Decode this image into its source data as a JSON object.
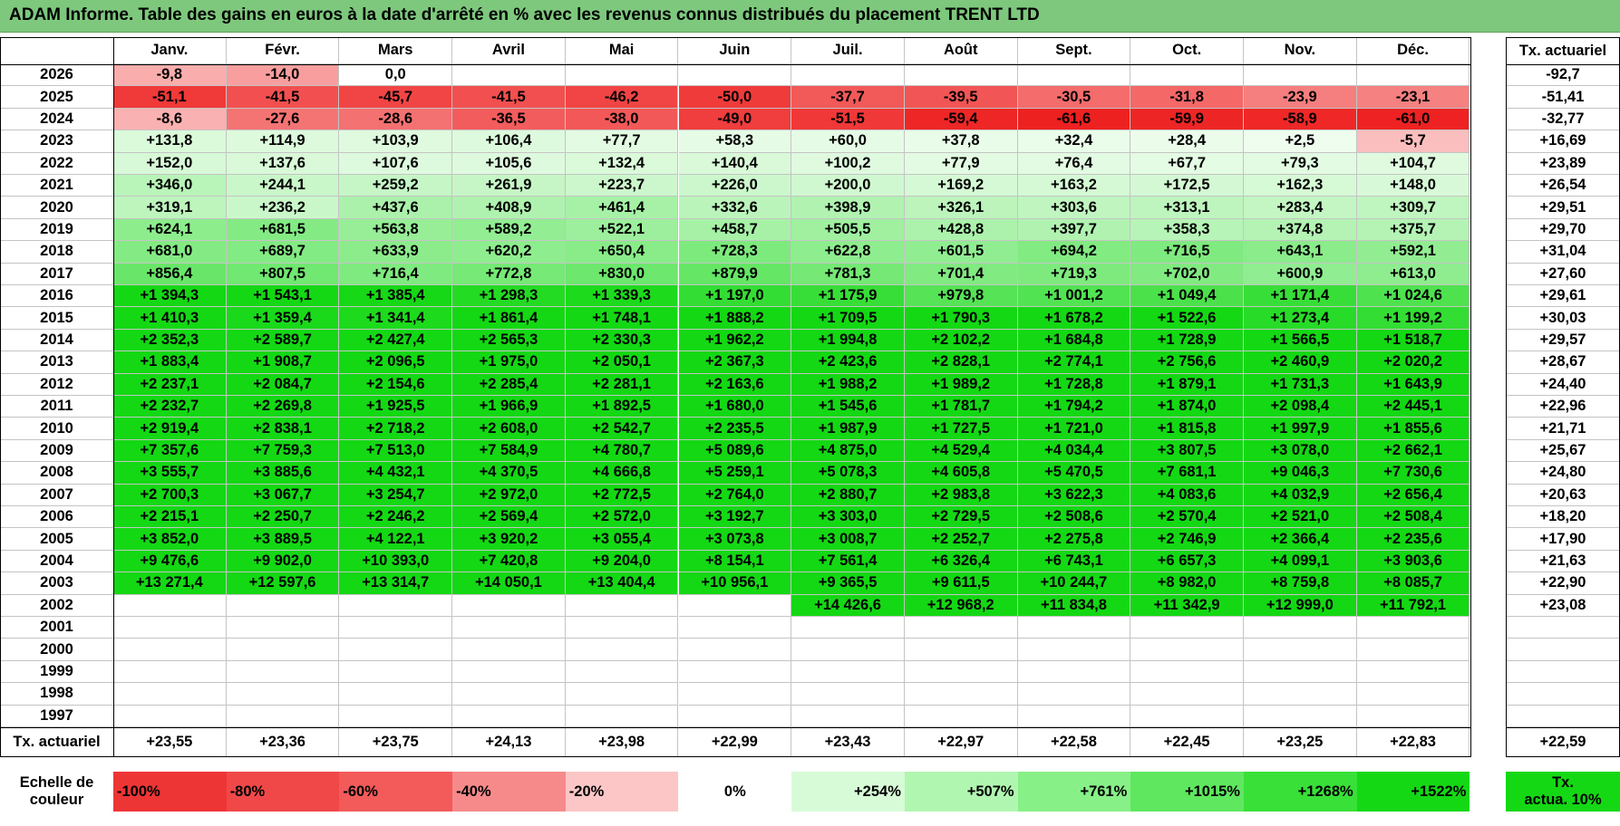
{
  "title": "ADAM Informe. Table des gains en euros à la date d'arrêté en % avec les revenus connus distribués du placement TRENT LTD",
  "months": [
    "Janv.",
    "Févr.",
    "Mars",
    "Avril",
    "Mai",
    "Juin",
    "Juil.",
    "Août",
    "Sept.",
    "Oct.",
    "Nov.",
    "Déc."
  ],
  "annual_header": "Tx. actuariel",
  "rows": [
    {
      "year": "2026",
      "values": [
        "-9,8",
        "-14,0",
        "0,0",
        "",
        "",
        "",
        "",
        "",
        "",
        "",
        "",
        ""
      ],
      "annual": "-92,7"
    },
    {
      "year": "2025",
      "values": [
        "-51,1",
        "-41,5",
        "-45,7",
        "-41,5",
        "-46,2",
        "-50,0",
        "-37,7",
        "-39,5",
        "-30,5",
        "-31,8",
        "-23,9",
        "-23,1"
      ],
      "annual": "-51,41"
    },
    {
      "year": "2024",
      "values": [
        "-8,6",
        "-27,6",
        "-28,6",
        "-36,5",
        "-38,0",
        "-49,0",
        "-51,5",
        "-59,4",
        "-61,6",
        "-59,9",
        "-58,9",
        "-61,0"
      ],
      "annual": "-32,77"
    },
    {
      "year": "2023",
      "values": [
        "+131,8",
        "+114,9",
        "+103,9",
        "+106,4",
        "+77,7",
        "+58,3",
        "+60,0",
        "+37,8",
        "+32,4",
        "+28,4",
        "+2,5",
        "-5,7"
      ],
      "annual": "+16,69"
    },
    {
      "year": "2022",
      "values": [
        "+152,0",
        "+137,6",
        "+107,6",
        "+105,6",
        "+132,4",
        "+140,4",
        "+100,2",
        "+77,9",
        "+76,4",
        "+67,7",
        "+79,3",
        "+104,7"
      ],
      "annual": "+23,89"
    },
    {
      "year": "2021",
      "values": [
        "+346,0",
        "+244,1",
        "+259,2",
        "+261,9",
        "+223,7",
        "+226,0",
        "+200,0",
        "+169,2",
        "+163,2",
        "+172,5",
        "+162,3",
        "+148,0"
      ],
      "annual": "+26,54"
    },
    {
      "year": "2020",
      "values": [
        "+319,1",
        "+236,2",
        "+437,6",
        "+408,9",
        "+461,4",
        "+332,6",
        "+398,9",
        "+326,1",
        "+303,6",
        "+313,1",
        "+283,4",
        "+309,7"
      ],
      "annual": "+29,51"
    },
    {
      "year": "2019",
      "values": [
        "+624,1",
        "+681,5",
        "+563,8",
        "+589,2",
        "+522,1",
        "+458,7",
        "+505,5",
        "+428,8",
        "+397,7",
        "+358,3",
        "+374,8",
        "+375,7"
      ],
      "annual": "+29,70"
    },
    {
      "year": "2018",
      "values": [
        "+681,0",
        "+689,7",
        "+633,9",
        "+620,2",
        "+650,4",
        "+728,3",
        "+622,8",
        "+601,5",
        "+694,2",
        "+716,5",
        "+643,1",
        "+592,1"
      ],
      "annual": "+31,04"
    },
    {
      "year": "2017",
      "values": [
        "+856,4",
        "+807,5",
        "+716,4",
        "+772,8",
        "+830,0",
        "+879,9",
        "+781,3",
        "+701,4",
        "+719,3",
        "+702,0",
        "+600,9",
        "+613,0"
      ],
      "annual": "+27,60"
    },
    {
      "year": "2016",
      "values": [
        "+1 394,3",
        "+1 543,1",
        "+1 385,4",
        "+1 298,3",
        "+1 339,3",
        "+1 197,0",
        "+1 175,9",
        "+979,8",
        "+1 001,2",
        "+1 049,4",
        "+1 171,4",
        "+1 024,6"
      ],
      "annual": "+29,61"
    },
    {
      "year": "2015",
      "values": [
        "+1 410,3",
        "+1 359,4",
        "+1 341,4",
        "+1 861,4",
        "+1 748,1",
        "+1 888,2",
        "+1 709,5",
        "+1 790,3",
        "+1 678,2",
        "+1 522,6",
        "+1 273,4",
        "+1 199,2"
      ],
      "annual": "+30,03"
    },
    {
      "year": "2014",
      "values": [
        "+2 352,3",
        "+2 589,7",
        "+2 427,4",
        "+2 565,3",
        "+2 330,3",
        "+1 962,2",
        "+1 994,8",
        "+2 102,2",
        "+1 684,8",
        "+1 728,9",
        "+1 566,5",
        "+1 518,7"
      ],
      "annual": "+29,57"
    },
    {
      "year": "2013",
      "values": [
        "+1 883,4",
        "+1 908,7",
        "+2 096,5",
        "+1 975,0",
        "+2 050,1",
        "+2 367,3",
        "+2 423,6",
        "+2 828,1",
        "+2 774,1",
        "+2 756,6",
        "+2 460,9",
        "+2 020,2"
      ],
      "annual": "+28,67"
    },
    {
      "year": "2012",
      "values": [
        "+2 237,1",
        "+2 084,7",
        "+2 154,6",
        "+2 285,4",
        "+2 281,1",
        "+2 163,6",
        "+1 988,2",
        "+1 989,2",
        "+1 728,8",
        "+1 879,1",
        "+1 731,3",
        "+1 643,9"
      ],
      "annual": "+24,40"
    },
    {
      "year": "2011",
      "values": [
        "+2 232,7",
        "+2 269,8",
        "+1 925,5",
        "+1 966,9",
        "+1 892,5",
        "+1 680,0",
        "+1 545,6",
        "+1 781,7",
        "+1 794,2",
        "+1 874,0",
        "+2 098,4",
        "+2 445,1"
      ],
      "annual": "+22,96"
    },
    {
      "year": "2010",
      "values": [
        "+2 919,4",
        "+2 838,1",
        "+2 718,2",
        "+2 608,0",
        "+2 542,7",
        "+2 235,5",
        "+1 987,9",
        "+1 727,5",
        "+1 721,0",
        "+1 815,8",
        "+1 997,9",
        "+1 855,6"
      ],
      "annual": "+21,71"
    },
    {
      "year": "2009",
      "values": [
        "+7 357,6",
        "+7 759,3",
        "+7 513,0",
        "+7 584,9",
        "+4 780,7",
        "+5 089,6",
        "+4 875,0",
        "+4 529,4",
        "+4 034,4",
        "+3 807,5",
        "+3 078,0",
        "+2 662,1"
      ],
      "annual": "+25,67"
    },
    {
      "year": "2008",
      "values": [
        "+3 555,7",
        "+3 885,6",
        "+4 432,1",
        "+4 370,5",
        "+4 666,8",
        "+5 259,1",
        "+5 078,3",
        "+4 605,8",
        "+5 470,5",
        "+7 681,1",
        "+9 046,3",
        "+7 730,6"
      ],
      "annual": "+24,80"
    },
    {
      "year": "2007",
      "values": [
        "+2 700,3",
        "+3 067,7",
        "+3 254,7",
        "+2 972,0",
        "+2 772,5",
        "+2 764,0",
        "+2 880,7",
        "+2 983,8",
        "+3 622,3",
        "+4 083,6",
        "+4 032,9",
        "+2 656,4"
      ],
      "annual": "+20,63"
    },
    {
      "year": "2006",
      "values": [
        "+2 215,1",
        "+2 250,7",
        "+2 246,2",
        "+2 569,4",
        "+2 572,0",
        "+3 192,7",
        "+3 303,0",
        "+2 729,5",
        "+2 508,6",
        "+2 570,4",
        "+2 521,0",
        "+2 508,4"
      ],
      "annual": "+18,20"
    },
    {
      "year": "2005",
      "values": [
        "+3 852,0",
        "+3 889,5",
        "+4 122,1",
        "+3 920,2",
        "+3 055,4",
        "+3 073,8",
        "+3 008,7",
        "+2 252,7",
        "+2 275,8",
        "+2 746,9",
        "+2 366,4",
        "+2 235,6"
      ],
      "annual": "+17,90"
    },
    {
      "year": "2004",
      "values": [
        "+9 476,6",
        "+9 902,0",
        "+10 393,0",
        "+7 420,8",
        "+9 204,0",
        "+8 154,1",
        "+7 561,4",
        "+6 326,4",
        "+6 743,1",
        "+6 657,3",
        "+4 099,1",
        "+3 903,6"
      ],
      "annual": "+21,63"
    },
    {
      "year": "2003",
      "values": [
        "+13 271,4",
        "+12 597,6",
        "+13 314,7",
        "+14 050,1",
        "+13 404,4",
        "+10 956,1",
        "+9 365,5",
        "+9 611,5",
        "+10 244,7",
        "+8 982,0",
        "+8 759,8",
        "+8 085,7"
      ],
      "annual": "+22,90"
    },
    {
      "year": "2002",
      "values": [
        "",
        "",
        "",
        "",
        "",
        "",
        "+14 426,6",
        "+12 968,2",
        "+11 834,8",
        "+11 342,9",
        "+12 999,0",
        "+11 792,1"
      ],
      "annual": "+23,08"
    },
    {
      "year": "2001",
      "values": [
        "",
        "",
        "",
        "",
        "",
        "",
        "",
        "",
        "",
        "",
        "",
        ""
      ],
      "annual": ""
    },
    {
      "year": "2000",
      "values": [
        "",
        "",
        "",
        "",
        "",
        "",
        "",
        "",
        "",
        "",
        "",
        ""
      ],
      "annual": ""
    },
    {
      "year": "1999",
      "values": [
        "",
        "",
        "",
        "",
        "",
        "",
        "",
        "",
        "",
        "",
        "",
        ""
      ],
      "annual": ""
    },
    {
      "year": "1998",
      "values": [
        "",
        "",
        "",
        "",
        "",
        "",
        "",
        "",
        "",
        "",
        "",
        ""
      ],
      "annual": ""
    },
    {
      "year": "1997",
      "values": [
        "",
        "",
        "",
        "",
        "",
        "",
        "",
        "",
        "",
        "",
        "",
        ""
      ],
      "annual": ""
    }
  ],
  "footer": {
    "label": "Tx. actuariel",
    "values": [
      "+23,55",
      "+23,36",
      "+23,75",
      "+24,13",
      "+23,98",
      "+22,99",
      "+23,43",
      "+22,97",
      "+22,58",
      "+22,45",
      "+23,25",
      "+22,83"
    ],
    "total": "+22,59"
  },
  "legend": {
    "label_line1": "Echelle de",
    "label_line2": "couleur",
    "items": [
      {
        "text": "-100%",
        "color": "#ee3535",
        "align": "left"
      },
      {
        "text": "-80%",
        "color": "#f04848",
        "align": "left"
      },
      {
        "text": "-60%",
        "color": "#f35a5a",
        "align": "left"
      },
      {
        "text": "-40%",
        "color": "#f68a8a",
        "align": "left"
      },
      {
        "text": "-20%",
        "color": "#fcc6c6",
        "align": "left"
      },
      {
        "text": "0%",
        "color": "#ffffff",
        "align": "center"
      },
      {
        "text": "+254%",
        "color": "#d7fbd7",
        "align": "right"
      },
      {
        "text": "+507%",
        "color": "#b0f6b0",
        "align": "right"
      },
      {
        "text": "+761%",
        "color": "#87f087",
        "align": "right"
      },
      {
        "text": "+1015%",
        "color": "#5fe75f",
        "align": "right"
      },
      {
        "text": "+1268%",
        "color": "#38e038",
        "align": "right"
      },
      {
        "text": "+1522%",
        "color": "#15d815",
        "align": "right"
      }
    ],
    "tx_line1": "Tx.",
    "tx_line2": "actua. 10%",
    "tx_color": "#15d815"
  },
  "colors": {
    "title_bg": "#7dc87d",
    "blank": "#ffffff"
  }
}
